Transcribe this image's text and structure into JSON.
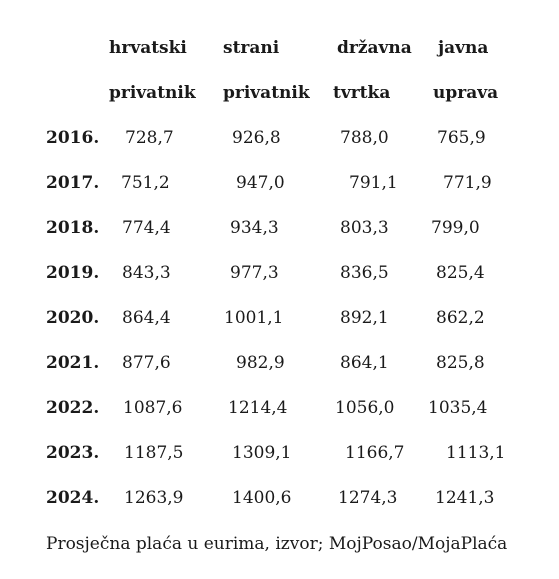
{
  "headers": [
    {
      "line1": "hrvatski",
      "line2": "privatnik"
    },
    {
      "line1": "strani",
      "line2": "privatnik"
    },
    {
      "line1": "državna",
      "line2": "tvrtka"
    },
    {
      "line1": "javna",
      "line2": "uprava"
    }
  ],
  "rows": [
    {
      "year": "2016.",
      "values": [
        "728,7",
        "926,8",
        "788,0",
        "765,9"
      ]
    },
    {
      "year": "2017.",
      "values": [
        "751,2",
        "947,0",
        "791,1",
        "771,9"
      ]
    },
    {
      "year": "2018.",
      "values": [
        "774,4",
        "934,3",
        "803,3",
        "799,0"
      ]
    },
    {
      "year": "2019.",
      "values": [
        "843,3",
        "977,3",
        "836,5",
        "825,4"
      ]
    },
    {
      "year": "2020.",
      "values": [
        "864,4",
        "1001,1",
        "892,1",
        "862,2"
      ]
    },
    {
      "year": "2021.",
      "values": [
        "877,6",
        "982,9",
        "864,1",
        "825,8"
      ]
    },
    {
      "year": "2022.",
      "values": [
        "1087,6",
        "1214,4",
        "1056,0",
        "1035,4"
      ]
    },
    {
      "year": "2023.",
      "values": [
        "1187,5",
        "1309,1",
        "1166,7",
        "1113,1"
      ]
    },
    {
      "year": "2024.",
      "values": [
        "1263,9",
        "1400,6",
        "1274,3",
        "1241,3"
      ]
    }
  ],
  "caption": "Prosječna plaća u eurima, izvor; MojPosao/MojaPlaća"
}
